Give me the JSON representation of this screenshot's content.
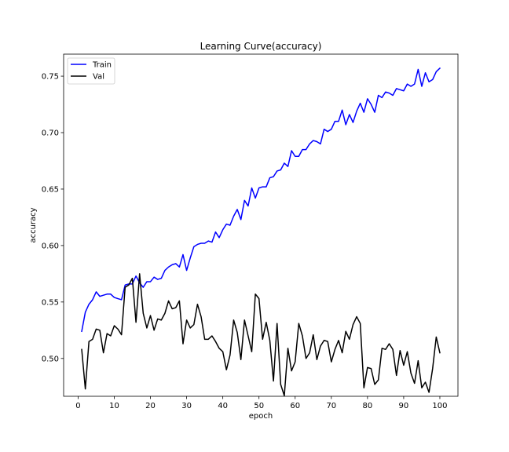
{
  "chart_data": {
    "type": "line",
    "title": "Learning Curve(accuracy)",
    "xlabel": "epoch",
    "ylabel": "accuracy",
    "xlim": [
      -4,
      105
    ],
    "ylim": [
      0.4665,
      0.7695
    ],
    "xticks": [
      0,
      10,
      20,
      30,
      40,
      50,
      60,
      70,
      80,
      90,
      100
    ],
    "yticks": [
      0.5,
      0.55,
      0.6,
      0.65,
      0.7,
      0.75
    ],
    "ytick_labels": [
      "0.50",
      "0.55",
      "0.60",
      "0.65",
      "0.70",
      "0.75"
    ],
    "grid": false,
    "legend_position": "top-left",
    "x": [
      1,
      2,
      3,
      4,
      5,
      6,
      7,
      8,
      9,
      10,
      11,
      12,
      13,
      14,
      15,
      16,
      17,
      18,
      19,
      20,
      21,
      22,
      23,
      24,
      25,
      26,
      27,
      28,
      29,
      30,
      31,
      32,
      33,
      34,
      35,
      36,
      37,
      38,
      39,
      40,
      41,
      42,
      43,
      44,
      45,
      46,
      47,
      48,
      49,
      50,
      51,
      52,
      53,
      54,
      55,
      56,
      57,
      58,
      59,
      60,
      61,
      62,
      63,
      64,
      65,
      66,
      67,
      68,
      69,
      70,
      71,
      72,
      73,
      74,
      75,
      76,
      77,
      78,
      79,
      80,
      81,
      82,
      83,
      84,
      85,
      86,
      87,
      88,
      89,
      90,
      91,
      92,
      93,
      94,
      95,
      96,
      97,
      98,
      99,
      100
    ],
    "series": [
      {
        "name": "Train",
        "color": "#0000ff",
        "values": [
          0.524,
          0.541,
          0.548,
          0.552,
          0.559,
          0.555,
          0.556,
          0.557,
          0.557,
          0.554,
          0.553,
          0.552,
          0.565,
          0.566,
          0.566,
          0.573,
          0.567,
          0.563,
          0.568,
          0.568,
          0.572,
          0.57,
          0.571,
          0.578,
          0.581,
          0.583,
          0.584,
          0.581,
          0.592,
          0.578,
          0.589,
          0.599,
          0.601,
          0.602,
          0.602,
          0.604,
          0.603,
          0.612,
          0.607,
          0.614,
          0.619,
          0.618,
          0.626,
          0.632,
          0.623,
          0.64,
          0.635,
          0.651,
          0.642,
          0.651,
          0.652,
          0.652,
          0.66,
          0.661,
          0.666,
          0.667,
          0.673,
          0.67,
          0.684,
          0.679,
          0.679,
          0.685,
          0.685,
          0.69,
          0.693,
          0.692,
          0.69,
          0.703,
          0.701,
          0.703,
          0.71,
          0.71,
          0.72,
          0.707,
          0.716,
          0.709,
          0.719,
          0.726,
          0.718,
          0.73,
          0.725,
          0.718,
          0.733,
          0.731,
          0.736,
          0.735,
          0.733,
          0.739,
          0.738,
          0.737,
          0.743,
          0.741,
          0.743,
          0.756,
          0.741,
          0.753,
          0.745,
          0.747,
          0.754,
          0.757
        ]
      },
      {
        "name": "Val",
        "color": "#000000",
        "values": [
          0.508,
          0.473,
          0.515,
          0.517,
          0.526,
          0.525,
          0.505,
          0.522,
          0.52,
          0.529,
          0.526,
          0.521,
          0.563,
          0.565,
          0.571,
          0.532,
          0.575,
          0.54,
          0.527,
          0.538,
          0.525,
          0.535,
          0.534,
          0.54,
          0.551,
          0.544,
          0.545,
          0.551,
          0.513,
          0.534,
          0.527,
          0.53,
          0.548,
          0.537,
          0.517,
          0.517,
          0.52,
          0.515,
          0.509,
          0.506,
          0.49,
          0.503,
          0.534,
          0.523,
          0.499,
          0.534,
          0.52,
          0.506,
          0.557,
          0.553,
          0.517,
          0.532,
          0.516,
          0.48,
          0.531,
          0.477,
          0.467,
          0.509,
          0.489,
          0.497,
          0.531,
          0.52,
          0.5,
          0.505,
          0.521,
          0.499,
          0.511,
          0.516,
          0.515,
          0.497,
          0.508,
          0.516,
          0.505,
          0.524,
          0.517,
          0.53,
          0.537,
          0.531,
          0.474,
          0.492,
          0.491,
          0.477,
          0.481,
          0.509,
          0.508,
          0.513,
          0.508,
          0.485,
          0.507,
          0.494,
          0.506,
          0.487,
          0.478,
          0.498,
          0.474,
          0.479,
          0.47,
          0.491,
          0.519,
          0.505
        ]
      }
    ]
  }
}
